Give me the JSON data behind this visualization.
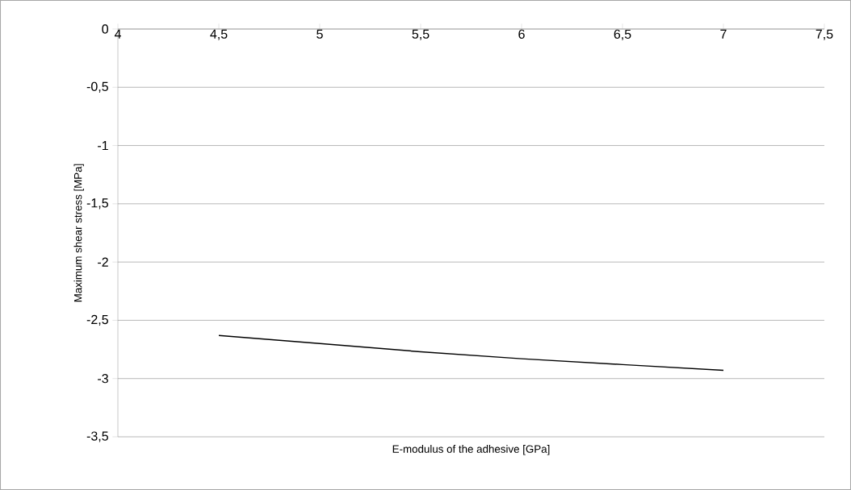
{
  "chart_data": {
    "type": "line",
    "xlabel": "E-modulus of the adhesive [GPa]",
    "ylabel": "Maximum shear stress [MPa]",
    "x": [
      4.5,
      5,
      5.5,
      6,
      6.5,
      7
    ],
    "series": [
      {
        "color": "#000000",
        "values": [
          -2.63,
          -2.7,
          -2.77,
          -2.83,
          -2.88,
          -2.93
        ]
      }
    ],
    "xlim": [
      4,
      7.5
    ],
    "xticks": [
      4,
      {
        "value": 4.5,
        "label": "4,5"
      },
      5,
      {
        "value": 5.5,
        "label": "5,5"
      },
      6,
      {
        "value": 6.5,
        "label": "6,5"
      },
      7,
      {
        "value": 7.5,
        "label": "7,5"
      }
    ],
    "ylim": [
      -3.5,
      0
    ],
    "yticks": [
      {
        "value": -3.5,
        "label": "-3,5"
      },
      {
        "value": -3,
        "label": "-3"
      },
      {
        "value": -2.5,
        "label": "-2,5"
      },
      {
        "value": -2,
        "label": "-2"
      },
      {
        "value": -1.5,
        "label": "-1,5"
      },
      {
        "value": -1,
        "label": "-1"
      },
      {
        "value": -0.5,
        "label": "-0,5"
      },
      {
        "value": 0,
        "label": "0"
      }
    ],
    "grid": "y",
    "marker": "none",
    "line_style": "solid"
  }
}
